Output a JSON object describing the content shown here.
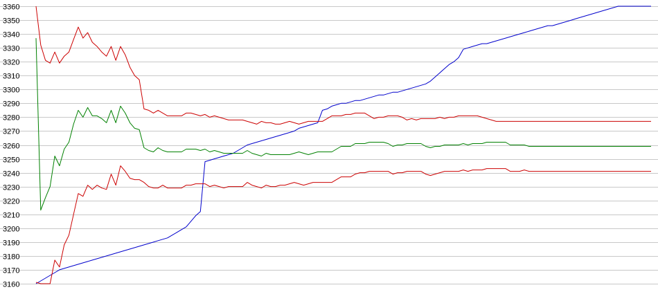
{
  "chart_data": {
    "type": "line",
    "title": "",
    "xlabel": "",
    "ylabel": "",
    "ylim": [
      3160,
      3360
    ],
    "y_ticks": [
      "3160",
      "3170",
      "3180",
      "3190",
      "3200",
      "3210",
      "3220",
      "3230",
      "3240",
      "3250",
      "3260",
      "3270",
      "3280",
      "3290",
      "3300",
      "3310",
      "3320",
      "3330",
      "3340",
      "3350",
      "3360"
    ],
    "grid": true,
    "legend": "none",
    "x": [
      0,
      1,
      2,
      3,
      4,
      5,
      6,
      7,
      8,
      9,
      10,
      11,
      12,
      13,
      14,
      15,
      16,
      17,
      18,
      19,
      20,
      21,
      22,
      23,
      24,
      25,
      26,
      27,
      28,
      29,
      30,
      31,
      32,
      33,
      34,
      35,
      36,
      37,
      38,
      39,
      40,
      41,
      42,
      43,
      44,
      45,
      46,
      47,
      48,
      49,
      50,
      51,
      52,
      53,
      54,
      55,
      56,
      57,
      58,
      59,
      60,
      61,
      62,
      63,
      64,
      65,
      66,
      67,
      68,
      69,
      70,
      71,
      72,
      73,
      74,
      75,
      76,
      77,
      78,
      79,
      80,
      81,
      82,
      83,
      84,
      85,
      86,
      87,
      88,
      89,
      90,
      91,
      92,
      93,
      94,
      95,
      96,
      97,
      98,
      99,
      100,
      101,
      102,
      103,
      104,
      105,
      106,
      107,
      108,
      109,
      110,
      111,
      112,
      113,
      114,
      115,
      116,
      117,
      118,
      119,
      120,
      121,
      122,
      123,
      124,
      125,
      126,
      127,
      128,
      129,
      130,
      131
    ],
    "series": [
      {
        "color": "#0000cc",
        "values": [
          3160,
          3162,
          3164,
          3166,
          3168,
          3170,
          3171,
          3172,
          3173,
          3174,
          3175,
          3176,
          3177,
          3178,
          3179,
          3180,
          3181,
          3182,
          3183,
          3184,
          3185,
          3186,
          3187,
          3188,
          3189,
          3190,
          3191,
          3192,
          3193,
          3195,
          3197,
          3199,
          3201,
          3205,
          3209,
          3212,
          3248,
          3249,
          3250,
          3251,
          3252,
          3253,
          3254,
          3256,
          3258,
          3260,
          3261,
          3262,
          3263,
          3264,
          3265,
          3266,
          3267,
          3268,
          3269,
          3270,
          3272,
          3273,
          3274,
          3275,
          3276,
          3285,
          3286,
          3288,
          3289,
          3290,
          3290,
          3291,
          3292,
          3292,
          3293,
          3294,
          3295,
          3296,
          3296,
          3297,
          3298,
          3298,
          3299,
          3300,
          3301,
          3302,
          3303,
          3304,
          3306,
          3309,
          3312,
          3315,
          3318,
          3320,
          3323,
          3329,
          3330,
          3331,
          3332,
          3333,
          3333,
          3334,
          3335,
          3336,
          3337,
          3338,
          3339,
          3340,
          3341,
          3342,
          3343,
          3344,
          3345,
          3346,
          3346,
          3347,
          3348,
          3349,
          3350,
          3351,
          3352,
          3353,
          3354,
          3355,
          3356,
          3357,
          3358,
          3359,
          3360,
          3360,
          3360,
          3360,
          3360,
          3360,
          3360,
          3360
        ]
      },
      {
        "color": "#cc0000",
        "values": [
          3360,
          3332,
          3321,
          3319,
          3327,
          3319,
          3324,
          3327,
          3336,
          3345,
          3337,
          3341,
          3334,
          3331,
          3327,
          3324,
          3331,
          3321,
          3331,
          3325,
          3316,
          3310,
          3307,
          3286,
          3285,
          3283,
          3285,
          3283,
          3281,
          3281,
          3281,
          3281,
          3283,
          3283,
          3282,
          3281,
          3282,
          3280,
          3281,
          3280,
          3279,
          3278,
          3278,
          3278,
          3278,
          3277,
          3276,
          3275,
          3277,
          3276,
          3276,
          3275,
          3275,
          3276,
          3277,
          3276,
          3275,
          3276,
          3277,
          3277,
          3277,
          3277,
          3279,
          3281,
          3281,
          3281,
          3282,
          3282,
          3283,
          3283,
          3283,
          3281,
          3279,
          3280,
          3280,
          3281,
          3281,
          3281,
          3280,
          3278,
          3279,
          3278,
          3279,
          3279,
          3279,
          3279,
          3280,
          3279,
          3280,
          3280,
          3281,
          3281,
          3281,
          3281,
          3281,
          3280,
          3279,
          3278,
          3277,
          3277,
          3277,
          3277,
          3277,
          3277,
          3277,
          3277,
          3277,
          3277,
          3277,
          3277,
          3277,
          3277,
          3277,
          3277,
          3277,
          3277,
          3277,
          3277,
          3277,
          3277,
          3277,
          3277,
          3277,
          3277,
          3277,
          3277,
          3277,
          3277,
          3277,
          3277,
          3277,
          3277
        ]
      },
      {
        "color": "#008000",
        "values": [
          3337,
          3213,
          3222,
          3230,
          3252,
          3245,
          3257,
          3262,
          3275,
          3285,
          3280,
          3287,
          3281,
          3281,
          3279,
          3276,
          3285,
          3276,
          3288,
          3283,
          3276,
          3272,
          3271,
          3258,
          3256,
          3255,
          3258,
          3256,
          3255,
          3255,
          3255,
          3255,
          3257,
          3257,
          3257,
          3256,
          3257,
          3255,
          3256,
          3255,
          3254,
          3254,
          3254,
          3254,
          3254,
          3256,
          3254,
          3253,
          3252,
          3254,
          3253,
          3253,
          3253,
          3253,
          3253,
          3254,
          3255,
          3254,
          3253,
          3254,
          3255,
          3255,
          3255,
          3255,
          3257,
          3259,
          3259,
          3259,
          3261,
          3261,
          3261,
          3262,
          3262,
          3262,
          3262,
          3261,
          3259,
          3260,
          3260,
          3261,
          3261,
          3261,
          3261,
          3259,
          3258,
          3259,
          3259,
          3260,
          3260,
          3260,
          3260,
          3261,
          3260,
          3261,
          3261,
          3261,
          3262,
          3262,
          3262,
          3262,
          3262,
          3260,
          3260,
          3260,
          3260,
          3259,
          3259,
          3259,
          3259,
          3259,
          3259,
          3259,
          3259,
          3259,
          3259,
          3259,
          3259,
          3259,
          3259,
          3259,
          3259,
          3259,
          3259,
          3259,
          3259,
          3259,
          3259,
          3259,
          3259,
          3259,
          3259,
          3259
        ]
      },
      {
        "color": "#cc0000",
        "values": [
          3161,
          3160,
          3160,
          3160,
          3177,
          3172,
          3188,
          3195,
          3210,
          3225,
          3223,
          3231,
          3228,
          3231,
          3229,
          3228,
          3239,
          3231,
          3245,
          3241,
          3236,
          3235,
          3235,
          3233,
          3230,
          3229,
          3229,
          3231,
          3229,
          3229,
          3229,
          3229,
          3231,
          3231,
          3232,
          3232,
          3232,
          3230,
          3231,
          3230,
          3229,
          3230,
          3230,
          3230,
          3230,
          3233,
          3231,
          3230,
          3229,
          3231,
          3230,
          3230,
          3231,
          3231,
          3232,
          3233,
          3232,
          3231,
          3232,
          3233,
          3233,
          3233,
          3233,
          3233,
          3235,
          3237,
          3237,
          3237,
          3239,
          3240,
          3240,
          3241,
          3241,
          3241,
          3241,
          3241,
          3239,
          3240,
          3240,
          3241,
          3241,
          3241,
          3241,
          3239,
          3238,
          3239,
          3240,
          3241,
          3241,
          3241,
          3241,
          3242,
          3241,
          3242,
          3242,
          3242,
          3243,
          3243,
          3243,
          3243,
          3243,
          3241,
          3241,
          3241,
          3242,
          3241,
          3241,
          3241,
          3241,
          3241,
          3241,
          3241,
          3241,
          3241,
          3241,
          3241,
          3241,
          3241,
          3241,
          3241,
          3241,
          3241,
          3241,
          3241,
          3241,
          3241,
          3241,
          3241,
          3241,
          3241,
          3241,
          3241
        ]
      }
    ]
  }
}
